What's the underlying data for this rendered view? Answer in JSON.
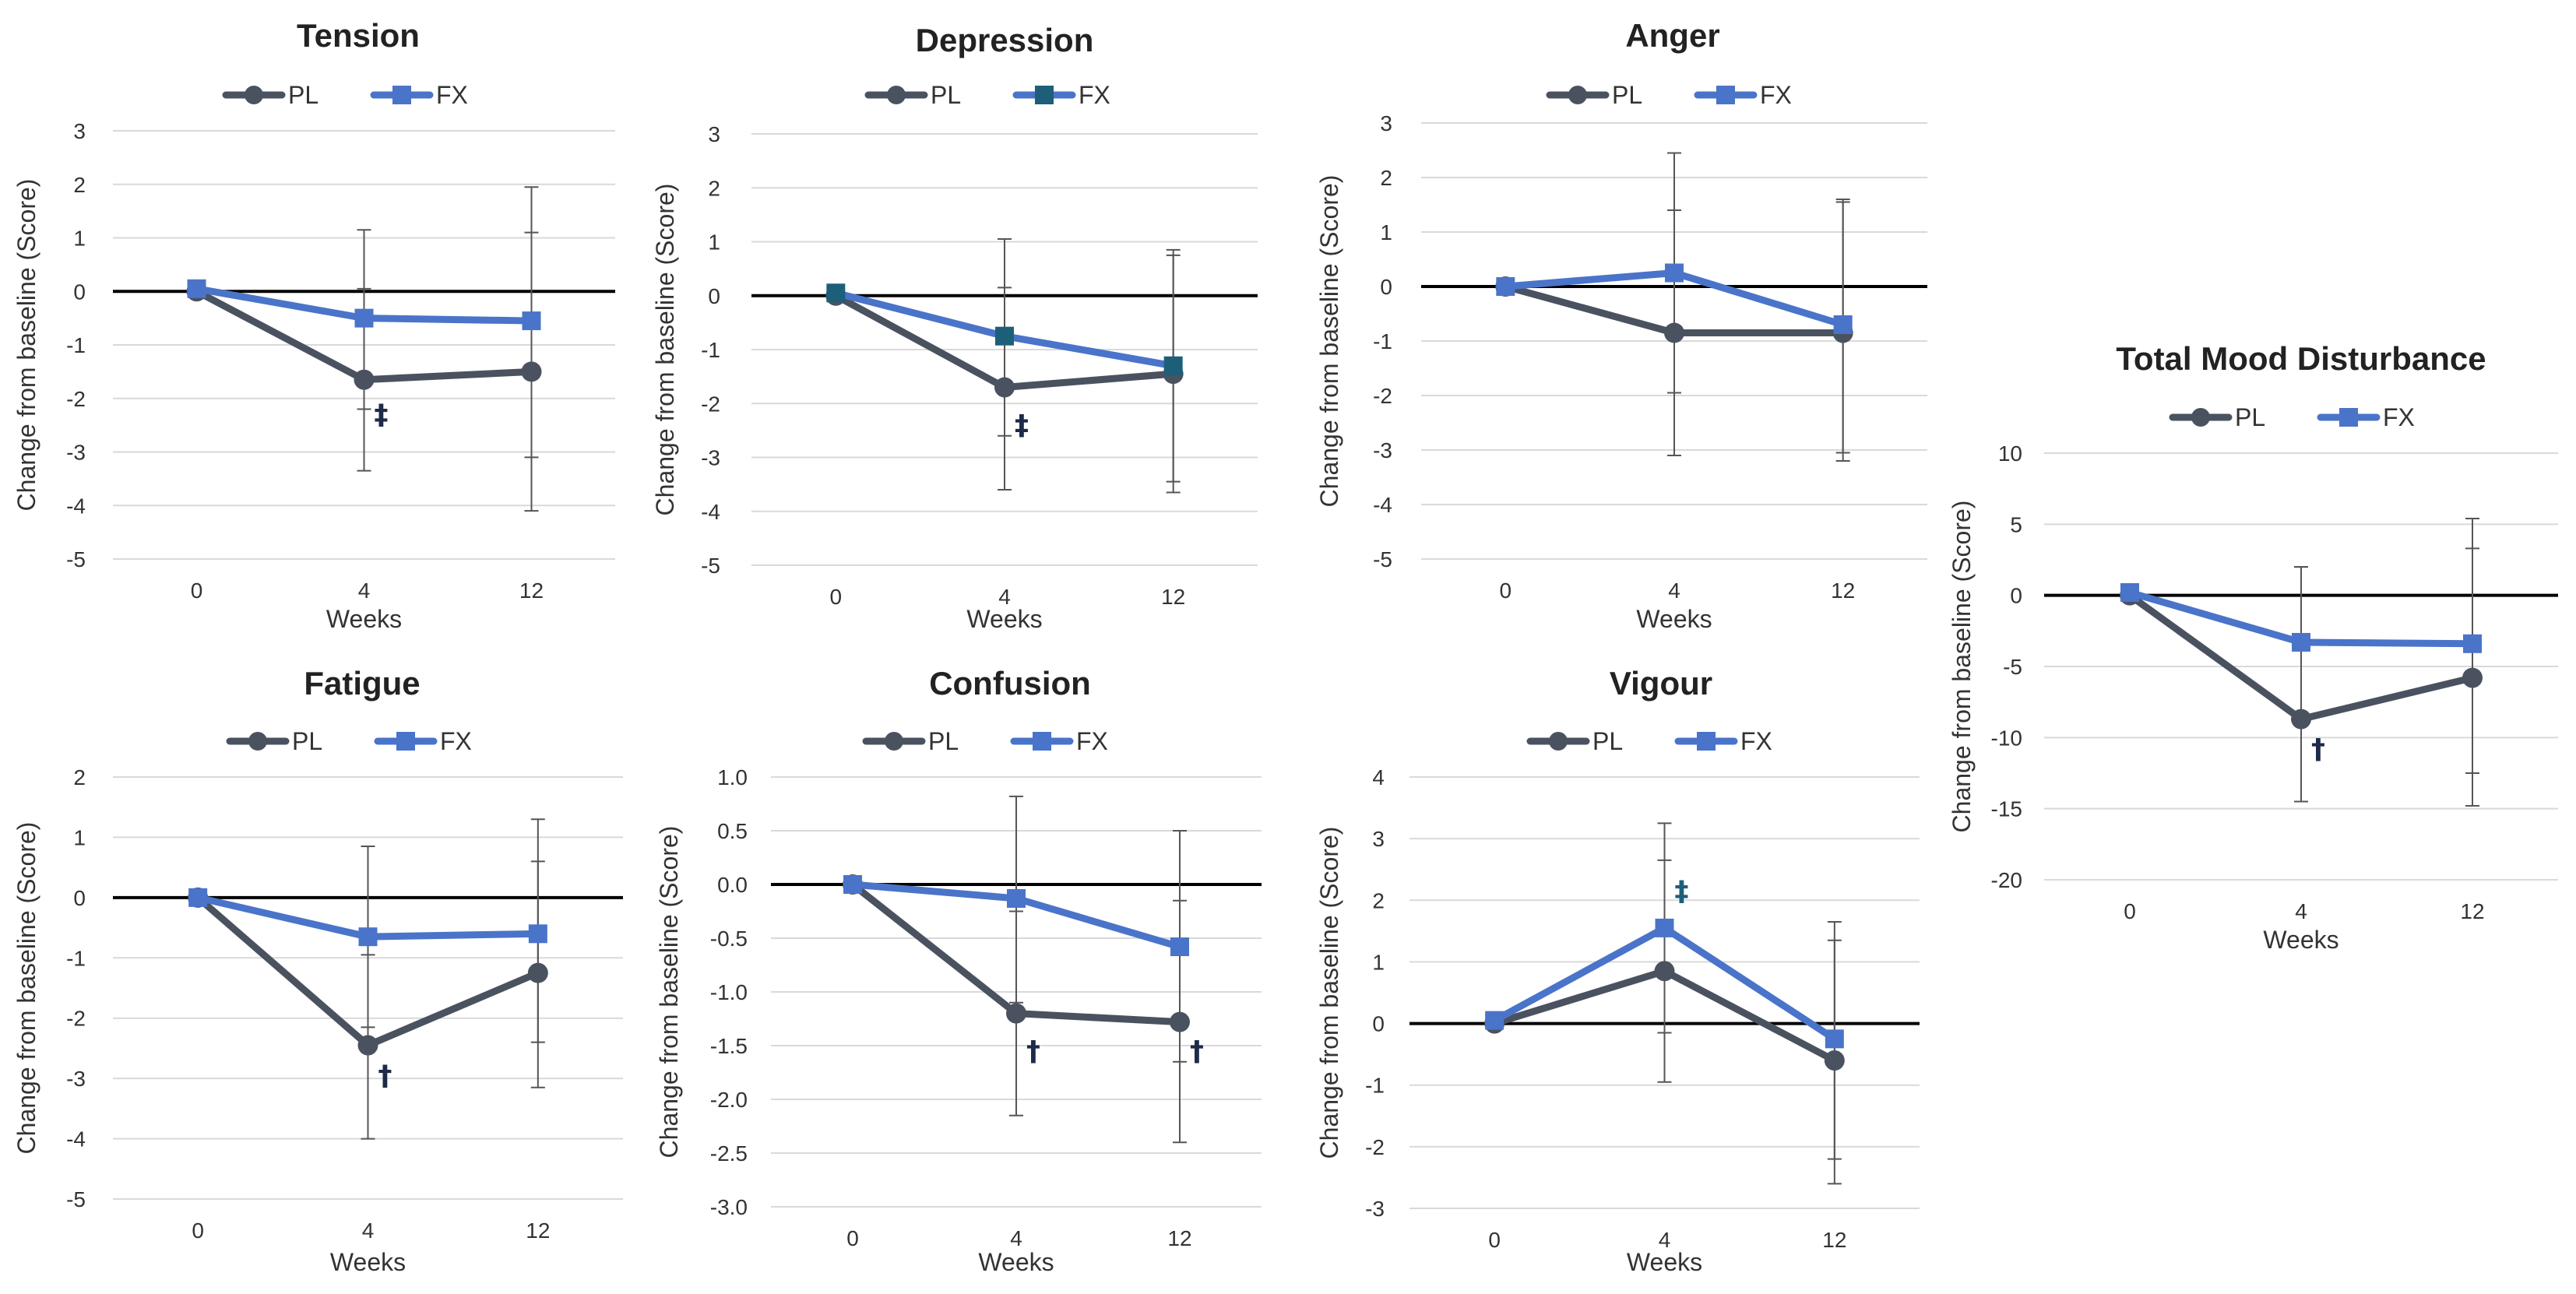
{
  "colors": {
    "PL": "#4a5260",
    "FX": "#4a74c9",
    "FX_alt": "#1d5f79",
    "grid": "#d9d9d9",
    "zero": "#000000",
    "error": "#555555",
    "marker": "#1d2b48"
  },
  "chart_data": [
    {
      "id": "tension",
      "type": "line",
      "title": "Tension",
      "xlabel": "Weeks",
      "ylabel": "Change from baseline (Score)",
      "categories": [
        "0",
        "4",
        "12"
      ],
      "yticks": [
        "3",
        "2",
        "1",
        "0",
        "-1",
        "-2",
        "-3",
        "-4",
        "-5"
      ],
      "ylim": [
        -5,
        3
      ],
      "series": [
        {
          "name": "PL",
          "values": [
            0,
            -1.65,
            -1.5
          ],
          "err_low": [
            0,
            -3.35,
            -4.1
          ],
          "err_high": [
            0,
            0.05,
            1.1
          ]
        },
        {
          "name": "FX",
          "values": [
            0.05,
            -0.5,
            -0.55
          ],
          "err_low": [
            0,
            -2.2,
            -3.1
          ],
          "err_high": [
            0,
            1.15,
            1.95
          ]
        }
      ],
      "annotations": [
        {
          "text": "‡",
          "x_index": 1,
          "y": -2.3
        }
      ]
    },
    {
      "id": "depression",
      "type": "line",
      "title": "Depression",
      "xlabel": "Weeks",
      "ylabel": "Change from baseline (Score)",
      "categories": [
        "0",
        "4",
        "12"
      ],
      "yticks": [
        "3",
        "2",
        "1",
        "0",
        "-1",
        "-2",
        "-3",
        "-4",
        "-5"
      ],
      "ylim": [
        -5,
        3
      ],
      "series": [
        {
          "name": "PL",
          "values": [
            0,
            -1.7,
            -1.45
          ],
          "err_low": [
            0,
            -3.6,
            -3.65
          ],
          "err_high": [
            0,
            0.15,
            0.75
          ]
        },
        {
          "name": "FX",
          "values": [
            0.05,
            -0.75,
            -1.3
          ],
          "err_low": [
            0,
            -2.6,
            -3.45
          ],
          "err_high": [
            0,
            1.05,
            0.85
          ],
          "altColor": true
        }
      ],
      "annotations": [
        {
          "text": "‡",
          "x_index": 1,
          "y": -2.4
        }
      ]
    },
    {
      "id": "anger",
      "type": "line",
      "title": "Anger",
      "xlabel": "Weeks",
      "ylabel": "Change from baseline (Score)",
      "categories": [
        "0",
        "4",
        "12"
      ],
      "yticks": [
        "3",
        "2",
        "1",
        "0",
        "-1",
        "-2",
        "-3",
        "-4",
        "-5"
      ],
      "ylim": [
        -5,
        3
      ],
      "series": [
        {
          "name": "PL",
          "values": [
            0,
            -0.85,
            -0.85
          ],
          "err_low": [
            0,
            -3.1,
            -3.2
          ],
          "err_high": [
            0,
            1.4,
            1.55
          ]
        },
        {
          "name": "FX",
          "values": [
            0,
            0.25,
            -0.7
          ],
          "err_low": [
            0,
            -1.95,
            -3.05
          ],
          "err_high": [
            0,
            2.45,
            1.6
          ]
        }
      ],
      "annotations": []
    },
    {
      "id": "fatigue",
      "type": "line",
      "title": "Fatigue",
      "xlabel": "Weeks",
      "ylabel": "Change from baseline (Score)",
      "categories": [
        "0",
        "4",
        "12"
      ],
      "yticks": [
        "2",
        "1",
        "0",
        "-1",
        "-2",
        "-3",
        "-4",
        "-5"
      ],
      "ylim": [
        -5,
        2
      ],
      "series": [
        {
          "name": "PL",
          "values": [
            0,
            -2.45,
            -1.25
          ],
          "err_low": [
            0,
            -4,
            -3.15
          ],
          "err_high": [
            0,
            -0.95,
            0.6
          ]
        },
        {
          "name": "FX",
          "values": [
            0,
            -0.65,
            -0.6
          ],
          "err_low": [
            0,
            -2.15,
            -2.4
          ],
          "err_high": [
            0,
            0.85,
            1.3
          ]
        }
      ],
      "annotations": [
        {
          "text": "†",
          "x_index": 1,
          "y": -2.95
        }
      ]
    },
    {
      "id": "confusion",
      "type": "line",
      "title": "Confusion",
      "xlabel": "Weeks",
      "ylabel": "Change from baseline (Score)",
      "categories": [
        "0",
        "4",
        "12"
      ],
      "yticks": [
        "1.0",
        "0.5",
        "0.0",
        "-0.5",
        "-1.0",
        "-1.5",
        "-2.0",
        "-2.5",
        "-3.0"
      ],
      "ylim": [
        -3,
        1
      ],
      "series": [
        {
          "name": "PL",
          "values": [
            0,
            -1.2,
            -1.28
          ],
          "err_low": [
            0,
            -2.15,
            -2.4
          ],
          "err_high": [
            0,
            -0.25,
            -0.15
          ]
        },
        {
          "name": "FX",
          "values": [
            0,
            -0.13,
            -0.58
          ],
          "err_low": [
            0,
            -1.1,
            -1.65
          ],
          "err_high": [
            0,
            0.82,
            0.5
          ]
        }
      ],
      "annotations": [
        {
          "text": "†",
          "x_index": 1,
          "y": -1.55
        },
        {
          "text": "†",
          "x_index": 2,
          "y": -1.55
        }
      ]
    },
    {
      "id": "vigour",
      "type": "line",
      "title": "Vigour",
      "xlabel": "Weeks",
      "ylabel": "Change from baseline (Score)",
      "categories": [
        "0",
        "4",
        "12"
      ],
      "yticks": [
        "4",
        "3",
        "2",
        "1",
        "0",
        "-1",
        "-2",
        "-3"
      ],
      "ylim": [
        -3,
        4
      ],
      "series": [
        {
          "name": "PL",
          "values": [
            0,
            0.85,
            -0.6
          ],
          "err_low": [
            0,
            -0.95,
            -2.6
          ],
          "err_high": [
            0,
            2.65,
            1.35
          ]
        },
        {
          "name": "FX",
          "values": [
            0.05,
            1.55,
            -0.25
          ],
          "err_low": [
            0,
            -0.15,
            -2.2
          ],
          "err_high": [
            0,
            3.25,
            1.65
          ]
        }
      ],
      "annotations": [
        {
          "text": "‡",
          "x_index": 1,
          "y": 2.15,
          "teal": true
        }
      ]
    },
    {
      "id": "tmd",
      "type": "line",
      "title": "Total Mood Disturbance",
      "xlabel": "Weeks",
      "ylabel": "Change from baseline (Score)",
      "categories": [
        "0",
        "4",
        "12"
      ],
      "yticks": [
        "10",
        "5",
        "0",
        "-5",
        "-10",
        "-15",
        "-20"
      ],
      "ylim": [
        -20,
        10
      ],
      "series": [
        {
          "name": "PL",
          "values": [
            0,
            -8.7,
            -5.8
          ],
          "err_low": [
            0,
            -14.5,
            -14.8
          ],
          "err_high": [
            0,
            2,
            3.3
          ]
        },
        {
          "name": "FX",
          "values": [
            0.2,
            -3.3,
            -3.4
          ],
          "err_low": [
            0,
            -8.7,
            -12.5
          ],
          "err_high": [
            0,
            2,
            5.4
          ]
        }
      ],
      "annotations": [
        {
          "text": "†",
          "x_index": 1,
          "y": -10.8
        }
      ]
    }
  ]
}
